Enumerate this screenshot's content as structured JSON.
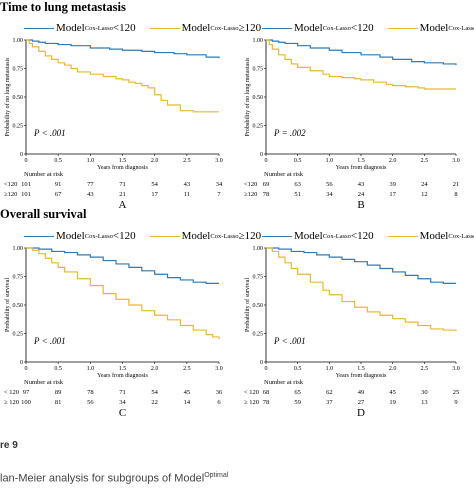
{
  "sections": {
    "top_title": "Time to lung metastasis",
    "bottom_title": "Overall survival"
  },
  "legend": {
    "model_word": "Model",
    "superscript": "Cox-Lasso",
    "low_label": "<120",
    "high_label": "≥120",
    "low_color": "#2b7bba",
    "high_color": "#e8b830"
  },
  "common": {
    "xlabel": "Years from diagnosis",
    "risk_header": "Number at risk"
  },
  "caption": {
    "figure": "re 9",
    "subtitle_pre": "lan-Meier analysis for subgroups of Model",
    "subtitle_sup": "Optimal"
  },
  "chart_data": [
    {
      "type": "line",
      "letter": "A",
      "ylabel": "Probability of no lung metastasis",
      "pvalue": "P < .001",
      "xlim": [
        0,
        3.0
      ],
      "ylim": [
        0,
        1.0
      ],
      "xticks": [
        "0",
        "0.5",
        "1.0",
        "1.5",
        "2.0",
        "2.5",
        "3.0"
      ],
      "yticks": [
        "0",
        "0.25",
        "0.50",
        "0.75",
        "1.00"
      ],
      "risk_labels": [
        "<120",
        "≥120"
      ],
      "risk_table": [
        [
          "101",
          "91",
          "77",
          "71",
          "54",
          "43",
          "34"
        ],
        [
          "101",
          "67",
          "43",
          "21",
          "17",
          "11",
          "7"
        ]
      ],
      "series": [
        {
          "name": "<120",
          "x": [
            0,
            0.1,
            0.2,
            0.3,
            0.5,
            0.7,
            1.0,
            1.3,
            1.5,
            1.8,
            2.0,
            2.3,
            2.5,
            2.8,
            3.0
          ],
          "y": [
            1.0,
            0.99,
            0.98,
            0.97,
            0.96,
            0.95,
            0.93,
            0.92,
            0.91,
            0.9,
            0.89,
            0.88,
            0.87,
            0.85,
            0.84
          ]
        },
        {
          "name": "≥120",
          "x": [
            0,
            0.05,
            0.1,
            0.2,
            0.3,
            0.4,
            0.5,
            0.6,
            0.7,
            0.8,
            1.0,
            1.2,
            1.4,
            1.5,
            1.6,
            1.7,
            1.8,
            1.9,
            2.0,
            2.1,
            2.2,
            2.4,
            2.6,
            2.8,
            3.0
          ],
          "y": [
            1.0,
            0.97,
            0.94,
            0.9,
            0.86,
            0.83,
            0.8,
            0.78,
            0.75,
            0.72,
            0.7,
            0.68,
            0.66,
            0.65,
            0.63,
            0.62,
            0.6,
            0.58,
            0.52,
            0.47,
            0.43,
            0.38,
            0.37,
            0.37,
            0.37
          ]
        }
      ]
    },
    {
      "type": "line",
      "letter": "B",
      "ylabel": "Probability of no lung metastasis",
      "pvalue": "P = .002",
      "xlim": [
        0,
        3.0
      ],
      "ylim": [
        0,
        1.0
      ],
      "xticks": [
        "0",
        "0.5",
        "1.0",
        "1.5",
        "2.0",
        "2.5",
        "3.0"
      ],
      "yticks": [
        "0",
        "0.25",
        "0.50",
        "0.75",
        "1.00"
      ],
      "risk_labels": [
        "<120",
        "≥120"
      ],
      "risk_table": [
        [
          "69",
          "63",
          "56",
          "43",
          "39",
          "24",
          "21"
        ],
        [
          "78",
          "51",
          "34",
          "24",
          "17",
          "12",
          "8"
        ]
      ],
      "series": [
        {
          "name": "<120",
          "x": [
            0,
            0.1,
            0.2,
            0.3,
            0.5,
            0.7,
            1.0,
            1.2,
            1.5,
            1.8,
            2.0,
            2.3,
            2.5,
            2.8,
            3.0
          ],
          "y": [
            1.0,
            0.99,
            0.98,
            0.97,
            0.95,
            0.93,
            0.91,
            0.89,
            0.87,
            0.85,
            0.83,
            0.81,
            0.8,
            0.79,
            0.78
          ]
        },
        {
          "name": "≥120",
          "x": [
            0,
            0.05,
            0.1,
            0.2,
            0.3,
            0.4,
            0.5,
            0.7,
            0.9,
            1.0,
            1.2,
            1.4,
            1.5,
            1.7,
            1.9,
            2.0,
            2.2,
            2.4,
            2.5,
            2.7,
            3.0
          ],
          "y": [
            1.0,
            0.96,
            0.92,
            0.87,
            0.83,
            0.79,
            0.76,
            0.73,
            0.7,
            0.68,
            0.67,
            0.66,
            0.65,
            0.63,
            0.61,
            0.6,
            0.59,
            0.58,
            0.57,
            0.57,
            0.57
          ]
        }
      ]
    },
    {
      "type": "line",
      "letter": "C",
      "ylabel": "Probability of survival",
      "pvalue": "P < .001",
      "xlim": [
        0,
        3.0
      ],
      "ylim": [
        0,
        1.0
      ],
      "xticks": [
        "0",
        "0.5",
        "1.0",
        "1.5",
        "2.0",
        "2.5",
        "3.0"
      ],
      "yticks": [
        "0",
        "0.25",
        "0.50",
        "0.75",
        "1.00"
      ],
      "risk_labels": [
        "< 120",
        "≥ 120"
      ],
      "risk_table": [
        [
          "97",
          "89",
          "78",
          "71",
          "54",
          "45",
          "36"
        ],
        [
          "100",
          "81",
          "56",
          "34",
          "22",
          "14",
          "6"
        ]
      ],
      "series": [
        {
          "name": "<120",
          "x": [
            0,
            0.2,
            0.4,
            0.6,
            0.8,
            1.0,
            1.2,
            1.4,
            1.6,
            1.8,
            2.0,
            2.2,
            2.4,
            2.6,
            2.8,
            3.0
          ],
          "y": [
            1.0,
            0.99,
            0.97,
            0.96,
            0.94,
            0.92,
            0.89,
            0.86,
            0.83,
            0.8,
            0.77,
            0.74,
            0.72,
            0.7,
            0.69,
            0.69
          ]
        },
        {
          "name": "≥120",
          "x": [
            0,
            0.1,
            0.2,
            0.3,
            0.4,
            0.5,
            0.6,
            0.8,
            1.0,
            1.2,
            1.4,
            1.6,
            1.8,
            2.0,
            2.2,
            2.4,
            2.6,
            2.8,
            2.9,
            3.0
          ],
          "y": [
            1.0,
            0.98,
            0.95,
            0.91,
            0.87,
            0.83,
            0.79,
            0.73,
            0.67,
            0.6,
            0.55,
            0.5,
            0.45,
            0.41,
            0.37,
            0.32,
            0.28,
            0.24,
            0.22,
            0.2
          ]
        }
      ]
    },
    {
      "type": "line",
      "letter": "D",
      "ylabel": "Probability of survival",
      "pvalue": "P < .001",
      "xlim": [
        0,
        3.0
      ],
      "ylim": [
        0,
        1.0
      ],
      "xticks": [
        "0",
        "0.5",
        "1.0",
        "1.5",
        "2.0",
        "2.5",
        "3.0"
      ],
      "yticks": [
        "0",
        "0.25",
        "0.50",
        "0.75",
        "1.00"
      ],
      "risk_labels": [
        "< 120",
        "≥ 120"
      ],
      "risk_table": [
        [
          "68",
          "65",
          "62",
          "49",
          "45",
          "30",
          "25"
        ],
        [
          "78",
          "59",
          "37",
          "27",
          "19",
          "13",
          "9"
        ]
      ],
      "series": [
        {
          "name": "<120",
          "x": [
            0,
            0.2,
            0.4,
            0.6,
            0.8,
            1.0,
            1.2,
            1.4,
            1.6,
            1.8,
            2.0,
            2.2,
            2.4,
            2.6,
            2.8,
            3.0
          ],
          "y": [
            1.0,
            0.99,
            0.97,
            0.96,
            0.94,
            0.92,
            0.9,
            0.88,
            0.85,
            0.82,
            0.79,
            0.76,
            0.73,
            0.7,
            0.69,
            0.69
          ]
        },
        {
          "name": "≥120",
          "x": [
            0,
            0.1,
            0.2,
            0.3,
            0.4,
            0.5,
            0.7,
            0.9,
            1.0,
            1.2,
            1.4,
            1.6,
            1.8,
            2.0,
            2.2,
            2.4,
            2.6,
            2.8,
            3.0
          ],
          "y": [
            1.0,
            0.97,
            0.92,
            0.87,
            0.82,
            0.77,
            0.7,
            0.63,
            0.59,
            0.53,
            0.48,
            0.44,
            0.41,
            0.38,
            0.35,
            0.32,
            0.29,
            0.28,
            0.27
          ]
        }
      ]
    }
  ]
}
